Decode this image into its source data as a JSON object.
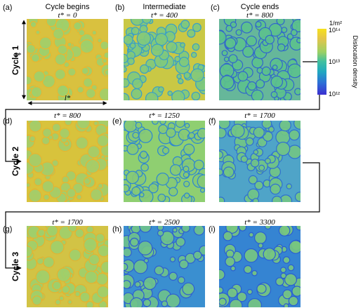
{
  "figure": {
    "column_headers": [
      "Cycle begins",
      "Intermediate",
      "Cycle ends"
    ],
    "cycles": [
      {
        "label": "Cycle 1",
        "panels": [
          {
            "tag": "(a)",
            "time": "t* = 0"
          },
          {
            "tag": "(b)",
            "time": "t* = 400"
          },
          {
            "tag": "(c)",
            "time": "t* = 800"
          }
        ]
      },
      {
        "label": "Cycle 2",
        "panels": [
          {
            "tag": "(d)",
            "time": "t* = 800"
          },
          {
            "tag": "(e)",
            "time": "t* = 1250"
          },
          {
            "tag": "(f)",
            "time": "t* = 1700"
          }
        ]
      },
      {
        "label": "Cycle 3",
        "panels": [
          {
            "tag": "(g)",
            "time": "t* = 1700"
          },
          {
            "tag": "(h)",
            "time": "t* = 2500"
          },
          {
            "tag": "(i)",
            "time": "t* = 3300"
          }
        ]
      }
    ],
    "dimension_labels": {
      "height": "l*",
      "width": "l*"
    },
    "colorbar": {
      "unit": "1/m²",
      "title": "Dislocation density",
      "ticks": [
        "10¹⁴",
        "10¹³",
        "10¹²"
      ],
      "colors": [
        "#f6e11d",
        "#e4c54a",
        "#9dd064",
        "#3fbfa0",
        "#20a8c0",
        "#2d6fd6",
        "#3b2fd0"
      ]
    }
  }
}
